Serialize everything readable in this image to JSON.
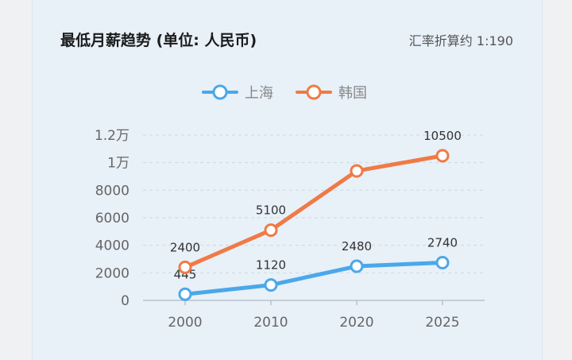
{
  "header": {
    "title": "最低月薪趋势 (单位: 人民币)",
    "note": "汇率折算约 1:190"
  },
  "colors": {
    "shanghai": "#4aa8ea",
    "korea": "#f07a45"
  },
  "chart_data": {
    "type": "line",
    "title": "最低月薪趋势 (单位: 人民币)",
    "categories": [
      "2000",
      "2010",
      "2020",
      "2025"
    ],
    "series": [
      {
        "name": "上海",
        "values": [
          445,
          1120,
          2480,
          2740
        ],
        "labels": [
          "445",
          "1120",
          "2480",
          "2740"
        ]
      },
      {
        "name": "韩国",
        "values": [
          2400,
          5100,
          9400,
          10500
        ],
        "labels": [
          "2400",
          "5100",
          "",
          "10500"
        ]
      }
    ],
    "y_ticks": [
      {
        "value": 0,
        "label": "0"
      },
      {
        "value": 2000,
        "label": "2000"
      },
      {
        "value": 4000,
        "label": "4000"
      },
      {
        "value": 6000,
        "label": "6000"
      },
      {
        "value": 8000,
        "label": "8000"
      },
      {
        "value": 10000,
        "label": "1万"
      },
      {
        "value": 12000,
        "label": "1.2万"
      }
    ],
    "ylim": [
      0,
      12000
    ],
    "grid": true,
    "legend": "top-center"
  }
}
